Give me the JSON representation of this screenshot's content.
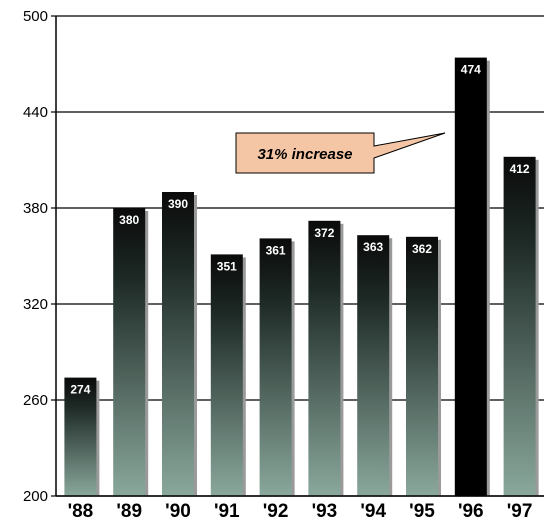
{
  "chart_data": {
    "type": "bar",
    "categories": [
      "'88",
      "'89",
      "'90",
      "'91",
      "'92",
      "'93",
      "'94",
      "'95",
      "'96",
      "'97"
    ],
    "values": [
      274,
      380,
      390,
      351,
      361,
      372,
      363,
      362,
      474,
      412
    ],
    "value_labels": [
      "274",
      "380",
      "390",
      "351",
      "361",
      "372",
      "363",
      "362",
      "474",
      "412"
    ],
    "ylim": [
      200,
      500
    ],
    "yticks": [
      200,
      260,
      320,
      380,
      440,
      500
    ],
    "ytick_labels": [
      "200",
      "260",
      "320",
      "380",
      "440",
      "500"
    ],
    "grid": true,
    "title": "",
    "xlabel": "",
    "ylabel": "",
    "highlight_index": 8,
    "colors": {
      "bar_top": "#0a0a0a",
      "bar_bottom": "#8aa89c",
      "highlight": "#000000",
      "callout_fill": "#f5c6a5"
    },
    "annotation": {
      "text": "31% increase",
      "target_index": 8
    }
  }
}
